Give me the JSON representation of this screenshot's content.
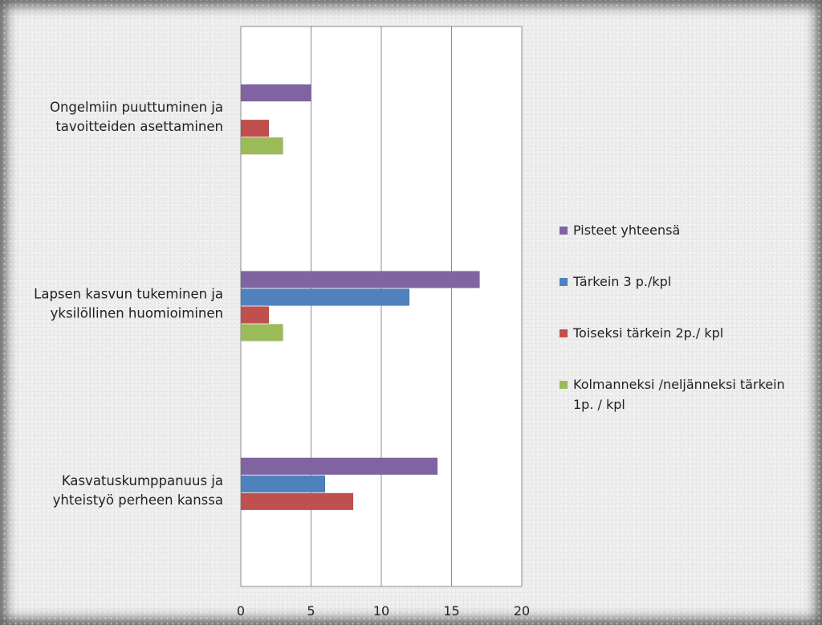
{
  "chart_data": {
    "type": "bar",
    "orientation": "horizontal",
    "categories": [
      [
        "Ongelmiin puuttuminen ja",
        "tavoitteiden asettaminen"
      ],
      [
        "Lapsen kasvun tukeminen ja",
        "yksilöllinen huomioiminen"
      ],
      [
        "Kasvatuskumppanuus ja",
        "yhteistyö perheen kanssa"
      ]
    ],
    "series": [
      {
        "name": "Pisteet yhteensä",
        "color": "#8064a2",
        "values": [
          5,
          17,
          14
        ]
      },
      {
        "name": "Tärkein 3 p./kpl",
        "color": "#4f81bd",
        "values": [
          0,
          12,
          6
        ]
      },
      {
        "name": "Toiseksi tärkein 2p./ kpl",
        "color": "#c0504d",
        "values": [
          2,
          2,
          8
        ]
      },
      {
        "name": [
          "Kolmanneksi /neljänneksi tärkein",
          "1p. / kpl"
        ],
        "color": "#9bbb59",
        "values": [
          3,
          3,
          0
        ]
      }
    ],
    "xlim": [
      0,
      20
    ],
    "ticks": [
      0,
      5,
      10,
      15,
      20
    ],
    "grid": true,
    "legend_position": "right"
  }
}
